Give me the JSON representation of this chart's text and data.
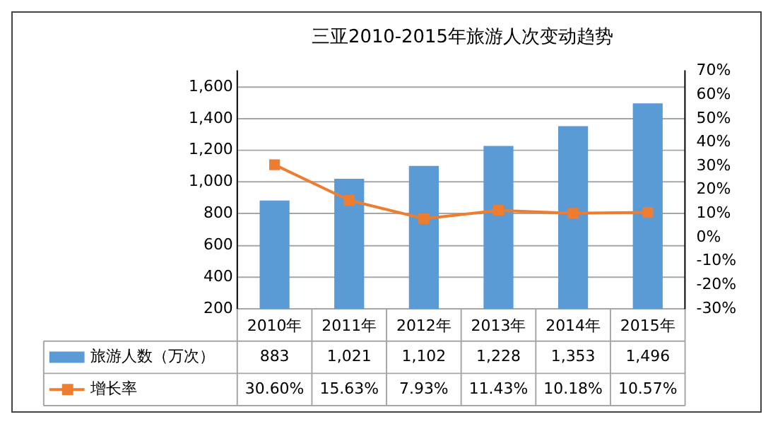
{
  "chart_data": {
    "type": "bar",
    "title": "三亚2010-2015年旅游人次变动趋势",
    "categories": [
      "2010年",
      "2011年",
      "2012年",
      "2013年",
      "2014年",
      "2015年"
    ],
    "series": [
      {
        "name": "旅游人数（万次）",
        "color": "#5b9bd5",
        "values": [
          883,
          1021,
          1102,
          1228,
          1353,
          1496
        ],
        "value_labels": [
          "883",
          "1,021",
          "1,102",
          "1,228",
          "1,353",
          "1,496"
        ]
      },
      {
        "name": "增长率",
        "type": "line",
        "axis": "y2",
        "color": "#ed7d31",
        "marker": "square",
        "values": [
          30.6,
          15.63,
          7.93,
          11.43,
          10.18,
          10.57
        ],
        "value_labels": [
          "30.60%",
          "15.63%",
          "7.93%",
          "11.43%",
          "10.18%",
          "10.57%"
        ]
      }
    ],
    "ylim": [
      200,
      1700
    ],
    "yticks": [
      {
        "value": 200,
        "label": "200"
      },
      {
        "value": 400,
        "label": "400"
      },
      {
        "value": 600,
        "label": "600"
      },
      {
        "value": 800,
        "label": "800"
      },
      {
        "value": 1000,
        "label": "1,000"
      },
      {
        "value": 1200,
        "label": "1,200"
      },
      {
        "value": 1400,
        "label": "1,400"
      },
      {
        "value": 1600,
        "label": "1,600"
      }
    ],
    "y2lim": [
      -30,
      70
    ],
    "y2ticks": [
      {
        "value": -30,
        "label": "-30%"
      },
      {
        "value": -20,
        "label": "-20%"
      },
      {
        "value": -10,
        "label": "-10%"
      },
      {
        "value": 0,
        "label": "0%"
      },
      {
        "value": 10,
        "label": "10%"
      },
      {
        "value": 20,
        "label": "20%"
      },
      {
        "value": 30,
        "label": "30%"
      },
      {
        "value": 40,
        "label": "40%"
      },
      {
        "value": 50,
        "label": "50%"
      },
      {
        "value": 60,
        "label": "60%"
      },
      {
        "value": 70,
        "label": "70%"
      }
    ],
    "grid": "y",
    "legend": "bottom"
  }
}
